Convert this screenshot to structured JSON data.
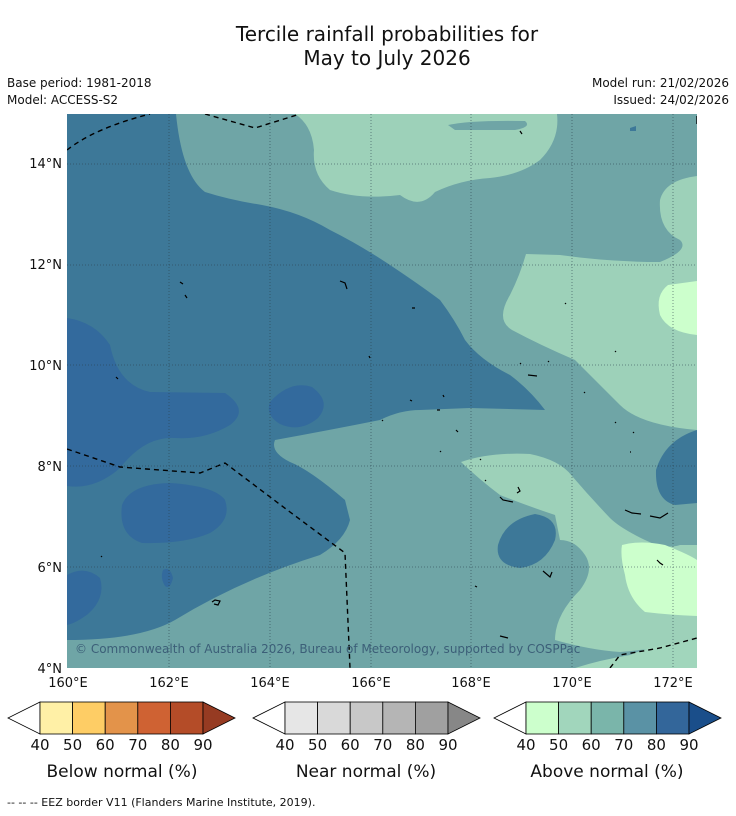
{
  "title": {
    "line1": "Tercile rainfall probabilities for",
    "line2": "May to July 2026"
  },
  "meta": {
    "base_period": "Base period: 1981-2018",
    "model": "Model: ACCESS-S2",
    "model_run": "Model run: 21/02/2026",
    "issued": "Issued: 24/02/2026"
  },
  "map": {
    "lon_labels": [
      "160°E",
      "162°E",
      "164°E",
      "166°E",
      "168°E",
      "170°E",
      "172°E"
    ],
    "lat_labels": [
      "14°N",
      "12°N",
      "10°N",
      "8°N",
      "6°N",
      "4°N"
    ],
    "credit": "© Commonwealth of Australia 2026, Bureau of Meteorology, supported by COSPPac"
  },
  "legends": [
    {
      "label": "Below normal (%)",
      "ticks": [
        "40",
        "50",
        "60",
        "70",
        "80",
        "90"
      ],
      "colors": [
        "#fff0a6",
        "#fecd65",
        "#e3934a",
        "#cf6233",
        "#b44c28",
        "#963b22"
      ]
    },
    {
      "label": "Near normal (%)",
      "ticks": [
        "40",
        "50",
        "60",
        "70",
        "80",
        "90"
      ],
      "colors": [
        "#e6e6e6",
        "#d9d9d9",
        "#c8c8c8",
        "#b5b5b5",
        "#a0a0a0",
        "#878787"
      ]
    },
    {
      "label": "Above normal (%)",
      "ticks": [
        "40",
        "50",
        "60",
        "70",
        "80",
        "90"
      ],
      "colors": [
        "#ccffcc",
        "#a1d6bc",
        "#7ab5aa",
        "#5a92a5",
        "#33669a",
        "#1a4e8a"
      ]
    }
  ],
  "footer": "--  --  -- EEZ border V11 (Flanders Marine Institute, 2019)."
}
